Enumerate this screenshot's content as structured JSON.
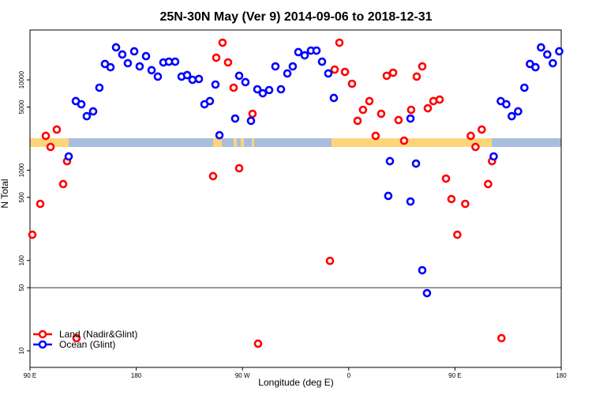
{
  "chart_data": {
    "type": "scatter",
    "title": "25N-30N May (Ver 9)   2014-09-06 to 2018-12-31",
    "xlabel": "Longitude (deg E)",
    "ylabel": "N Total",
    "y_scale": "log",
    "ylim": [
      9,
      50000
    ],
    "x_ticks": [
      {
        "lon": 90,
        "label": "90 E"
      },
      {
        "lon": 180,
        "label": "180"
      },
      {
        "lon": -90,
        "label": "90 W"
      },
      {
        "lon": 0,
        "label": "0"
      },
      {
        "lon": 90,
        "label": "90 E",
        "repeat": true
      },
      {
        "lon": 180,
        "label": "180",
        "repeat": true
      }
    ],
    "y_ticks": [
      10,
      50,
      100,
      500,
      1000,
      5000,
      10000
    ],
    "reference_line": 50,
    "grid": false,
    "legend_position": "bottom-left",
    "series": [
      {
        "name": "Land (Nadir&Glint)",
        "color": "#ff0000",
        "points": [
          [
            92.0,
            193
          ],
          [
            98.7,
            424
          ],
          [
            103.4,
            2399
          ],
          [
            107.4,
            1808
          ],
          [
            112.7,
            2818
          ],
          [
            118.1,
            702
          ],
          [
            121.4,
            1259
          ],
          [
            129.4,
            13.8
          ],
          [
            -114.9,
            859
          ],
          [
            -112.2,
            17600
          ],
          [
            -106.9,
            25800
          ],
          [
            -102.2,
            15600
          ],
          [
            -97.5,
            8190
          ],
          [
            -92.8,
            1050
          ],
          [
            -81.5,
            4210
          ],
          [
            -76.8,
            12
          ],
          [
            -15.9,
            99
          ],
          [
            -11.9,
            13000
          ],
          [
            -7.9,
            25800
          ],
          [
            -3.2,
            12250
          ],
          [
            2.8,
            9060
          ],
          [
            7.5,
            3520
          ],
          [
            12.1,
            4660
          ],
          [
            17.5,
            5820
          ],
          [
            22.8,
            2399
          ],
          [
            27.5,
            4210
          ],
          [
            32.2,
            11100
          ],
          [
            37.6,
            12000
          ],
          [
            42.2,
            3590
          ],
          [
            46.9,
            2120
          ],
          [
            52.9,
            4660
          ],
          [
            57.6,
            10870
          ],
          [
            62.3,
            14100
          ],
          [
            67.0,
            4850
          ],
          [
            71.7,
            5820
          ],
          [
            77.0,
            6050
          ],
          [
            82.4,
            807
          ],
          [
            87.0,
            479
          ]
        ]
      },
      {
        "name": "Ocean (Glint)",
        "color": "#0000ff",
        "points": [
          [
            122.8,
            1420
          ],
          [
            128.8,
            5820
          ],
          [
            133.5,
            5370
          ],
          [
            138.1,
            3960
          ],
          [
            143.5,
            4480
          ],
          [
            148.8,
            8190
          ],
          [
            153.5,
            15000
          ],
          [
            158.2,
            13800
          ],
          [
            162.9,
            22900
          ],
          [
            168.2,
            19100
          ],
          [
            172.9,
            15300
          ],
          [
            178.3,
            20700
          ],
          [
            -177.1,
            14100
          ],
          [
            -171.7,
            18300
          ],
          [
            -167.0,
            12800
          ],
          [
            -161.7,
            10870
          ],
          [
            -157.0,
            15600
          ],
          [
            -152.3,
            15900
          ],
          [
            -147.0,
            15900
          ],
          [
            -141.6,
            10870
          ],
          [
            -136.9,
            11300
          ],
          [
            -132.3,
            10020
          ],
          [
            -126.9,
            10230
          ],
          [
            -122.2,
            5370
          ],
          [
            -117.6,
            5820
          ],
          [
            -112.9,
            8880
          ],
          [
            -109.5,
            2440
          ],
          [
            -96.2,
            3730
          ],
          [
            -92.8,
            11100
          ],
          [
            -87.5,
            9440
          ],
          [
            -82.8,
            3520
          ],
          [
            -77.4,
            7870
          ],
          [
            -72.8,
            7110
          ],
          [
            -67.4,
            7710
          ],
          [
            -62.1,
            14100
          ],
          [
            -57.4,
            7870
          ],
          [
            -52.0,
            11780
          ],
          [
            -47.4,
            14100
          ],
          [
            -42.7,
            20300
          ],
          [
            -37.3,
            18700
          ],
          [
            -32.0,
            21100
          ],
          [
            -27.3,
            21100
          ],
          [
            -22.6,
            15900
          ],
          [
            -17.3,
            11780
          ],
          [
            -12.6,
            6310
          ],
          [
            33.5,
            519
          ],
          [
            34.9,
            1259
          ],
          [
            52.3,
            450
          ],
          [
            52.3,
            3730
          ],
          [
            57.0,
            1183
          ],
          [
            62.3,
            78
          ],
          [
            66.3,
            43.5
          ]
        ]
      }
    ],
    "map_strip_colors": {
      "land": "#fcd57a",
      "ocean": "#a8bedc"
    }
  }
}
